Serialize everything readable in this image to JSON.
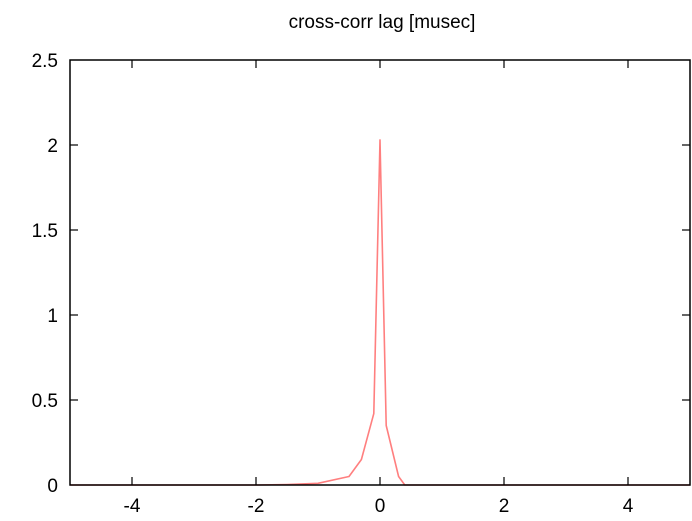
{
  "chart_data": {
    "type": "line",
    "title": "cross-corr lag [musec]",
    "xlabel": "",
    "ylabel": "",
    "xlim": [
      -5,
      5
    ],
    "ylim": [
      0,
      2.5
    ],
    "x_ticks": [
      -4,
      -2,
      0,
      2,
      4
    ],
    "x_tick_labels": [
      "-4",
      "-2",
      "0",
      "2",
      "4"
    ],
    "y_ticks": [
      0,
      0.5,
      1,
      1.5,
      2,
      2.5
    ],
    "y_tick_labels": [
      "0",
      "0.5",
      "1",
      "1.5",
      "2",
      "2.5"
    ],
    "grid": false,
    "series": [
      {
        "color": "#ff7f7f",
        "x": [
          -5,
          -4,
          -3,
          -2,
          -1.5,
          -1,
          -0.5,
          -0.3,
          -0.1,
          0,
          0.1,
          0.2,
          0.3,
          0.4,
          1,
          2,
          3,
          4,
          5
        ],
        "y": [
          0,
          0,
          0,
          0,
          0.003,
          0.01,
          0.05,
          0.15,
          0.42,
          2.03,
          0.35,
          0.2,
          0.05,
          0,
          0,
          0,
          0,
          0,
          0
        ]
      }
    ]
  }
}
